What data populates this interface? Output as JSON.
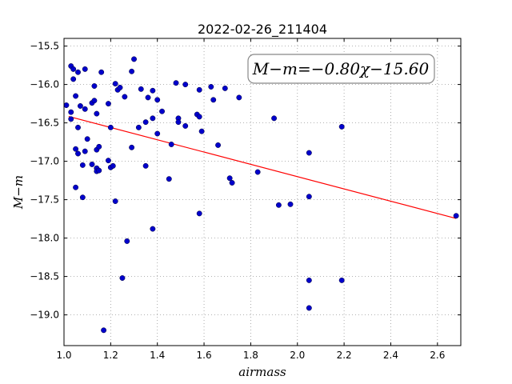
{
  "chart_data": {
    "type": "scatter",
    "title": "2022-02-26_211404",
    "xlabel": "airmass",
    "ylabel": "M−m",
    "xlim": [
      1.0,
      2.7
    ],
    "ylim": [
      -19.4,
      -15.4
    ],
    "y_inverted": true,
    "grid": true,
    "x_ticks": [
      1.0,
      1.2,
      1.4,
      1.6,
      1.8,
      2.0,
      2.2,
      2.4,
      2.6
    ],
    "x_tick_labels": [
      "1.0",
      "1.2",
      "1.4",
      "1.6",
      "1.8",
      "2.0",
      "2.2",
      "2.4",
      "2.6"
    ],
    "y_ticks": [
      -15.5,
      -16.0,
      -16.5,
      -17.0,
      -17.5,
      -18.0,
      -18.5,
      -19.0
    ],
    "y_tick_labels": [
      "−15.5",
      "−16.0",
      "−16.5",
      "−17.0",
      "−17.5",
      "−18.0",
      "−18.5",
      "−19.0"
    ],
    "annotation": "M−m=−0.80χ−15.60",
    "annotation_position": "top-right",
    "fit": {
      "slope": -0.8,
      "intercept": -15.6,
      "x_range": [
        1.02,
        2.68
      ],
      "color": "#ff0000"
    },
    "point_color": "#0000cc",
    "points": [
      [
        1.01,
        -16.27
      ],
      [
        1.03,
        -16.45
      ],
      [
        1.03,
        -15.76
      ],
      [
        1.04,
        -15.8
      ],
      [
        1.04,
        -15.93
      ],
      [
        1.03,
        -16.36
      ],
      [
        1.05,
        -16.15
      ],
      [
        1.05,
        -16.84
      ],
      [
        1.06,
        -16.9
      ],
      [
        1.06,
        -16.56
      ],
      [
        1.05,
        -17.34
      ],
      [
        1.06,
        -15.84
      ],
      [
        1.07,
        -16.28
      ],
      [
        1.08,
        -17.05
      ],
      [
        1.08,
        -17.47
      ],
      [
        1.09,
        -16.87
      ],
      [
        1.09,
        -16.32
      ],
      [
        1.09,
        -15.8
      ],
      [
        1.1,
        -16.71
      ],
      [
        1.12,
        -17.04
      ],
      [
        1.12,
        -16.24
      ],
      [
        1.13,
        -16.21
      ],
      [
        1.13,
        -16.02
      ],
      [
        1.14,
        -16.38
      ],
      [
        1.14,
        -16.85
      ],
      [
        1.14,
        -17.09
      ],
      [
        1.14,
        -17.13
      ],
      [
        1.15,
        -17.12
      ],
      [
        1.15,
        -16.81
      ],
      [
        1.16,
        -15.84
      ],
      [
        1.17,
        -19.2
      ],
      [
        1.19,
        -16.25
      ],
      [
        1.19,
        -16.99
      ],
      [
        1.2,
        -16.56
      ],
      [
        1.2,
        -17.08
      ],
      [
        1.21,
        -17.06
      ],
      [
        1.22,
        -15.99
      ],
      [
        1.22,
        -17.52
      ],
      [
        1.23,
        -16.07
      ],
      [
        1.24,
        -16.04
      ],
      [
        1.25,
        -18.52
      ],
      [
        1.26,
        -16.16
      ],
      [
        1.27,
        -18.04
      ],
      [
        1.29,
        -16.82
      ],
      [
        1.29,
        -15.83
      ],
      [
        1.3,
        -15.67
      ],
      [
        1.32,
        -16.56
      ],
      [
        1.33,
        -16.06
      ],
      [
        1.35,
        -16.49
      ],
      [
        1.35,
        -17.06
      ],
      [
        1.36,
        -16.17
      ],
      [
        1.38,
        -16.44
      ],
      [
        1.38,
        -17.88
      ],
      [
        1.38,
        -16.08
      ],
      [
        1.4,
        -16.2
      ],
      [
        1.4,
        -16.64
      ],
      [
        1.42,
        -16.35
      ],
      [
        1.45,
        -17.23
      ],
      [
        1.46,
        -16.78
      ],
      [
        1.48,
        -15.98
      ],
      [
        1.49,
        -16.44
      ],
      [
        1.49,
        -16.49
      ],
      [
        1.52,
        -16.0
      ],
      [
        1.52,
        -16.54
      ],
      [
        1.57,
        -16.39
      ],
      [
        1.58,
        -16.42
      ],
      [
        1.58,
        -17.68
      ],
      [
        1.58,
        -16.07
      ],
      [
        1.59,
        -16.61
      ],
      [
        1.63,
        -16.03
      ],
      [
        1.64,
        -16.2
      ],
      [
        1.66,
        -16.79
      ],
      [
        1.69,
        -16.05
      ],
      [
        1.71,
        -17.22
      ],
      [
        1.72,
        -17.28
      ],
      [
        1.75,
        -16.17
      ],
      [
        1.83,
        -17.14
      ],
      [
        1.9,
        -16.44
      ],
      [
        1.92,
        -17.57
      ],
      [
        1.97,
        -17.56
      ],
      [
        2.05,
        -16.89
      ],
      [
        2.05,
        -17.46
      ],
      [
        2.05,
        -18.55
      ],
      [
        2.05,
        -18.91
      ],
      [
        2.19,
        -16.55
      ],
      [
        2.19,
        -18.55
      ],
      [
        2.68,
        -17.71
      ]
    ]
  }
}
